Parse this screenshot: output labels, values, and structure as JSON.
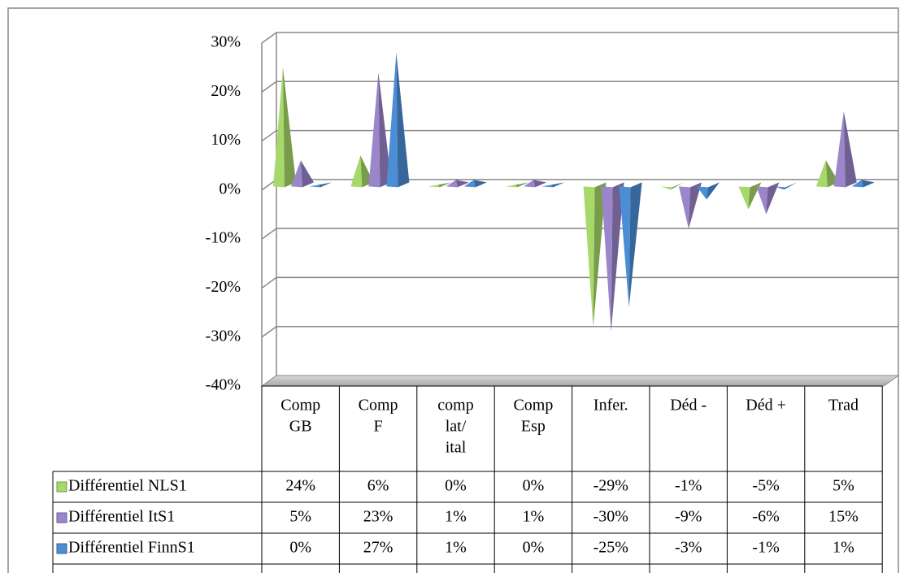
{
  "chart_data": {
    "type": "pyramid3d",
    "categories": [
      [
        "Comp",
        "GB"
      ],
      [
        "Comp",
        "F"
      ],
      [
        "comp",
        "lat/",
        "ital"
      ],
      [
        "Comp",
        "Esp"
      ],
      [
        "Infer."
      ],
      [
        "Déd -"
      ],
      [
        "Déd +"
      ],
      [
        "Trad"
      ]
    ],
    "series": [
      {
        "name": "Différentiel NLS1",
        "color": "#a6d86a",
        "values": [
          24,
          6,
          0,
          0,
          -29,
          -1,
          -5,
          5
        ],
        "value_labels": [
          "24%",
          "6%",
          "0%",
          "0%",
          "-29%",
          "-1%",
          "-5%",
          "5%"
        ]
      },
      {
        "name": "Différentiel ItS1",
        "color": "#9b85cb",
        "values": [
          5,
          23,
          1,
          1,
          -30,
          -9,
          -6,
          15
        ],
        "value_labels": [
          "5%",
          "23%",
          "1%",
          "1%",
          "-30%",
          "-9%",
          "-6%",
          "15%"
        ]
      },
      {
        "name": "Différentiel FinnS1",
        "color": "#4c8ed6",
        "values": [
          0,
          27,
          1,
          0,
          -25,
          -3,
          -1,
          1
        ],
        "value_labels": [
          "0%",
          "27%",
          "1%",
          "0%",
          "-25%",
          "-3%",
          "-1%",
          "1%"
        ]
      }
    ],
    "ylim": [
      -40,
      30
    ],
    "yticks": [
      {
        "value": -40,
        "label": "-40%"
      },
      {
        "value": -30,
        "label": "-30%"
      },
      {
        "value": -20,
        "label": "-20%"
      },
      {
        "value": -10,
        "label": "-10%"
      },
      {
        "value": 0,
        "label": "0%"
      },
      {
        "value": 10,
        "label": "10%"
      },
      {
        "value": 20,
        "label": "20%"
      },
      {
        "value": 30,
        "label": "30%"
      }
    ],
    "grid": true,
    "legend": "table"
  }
}
